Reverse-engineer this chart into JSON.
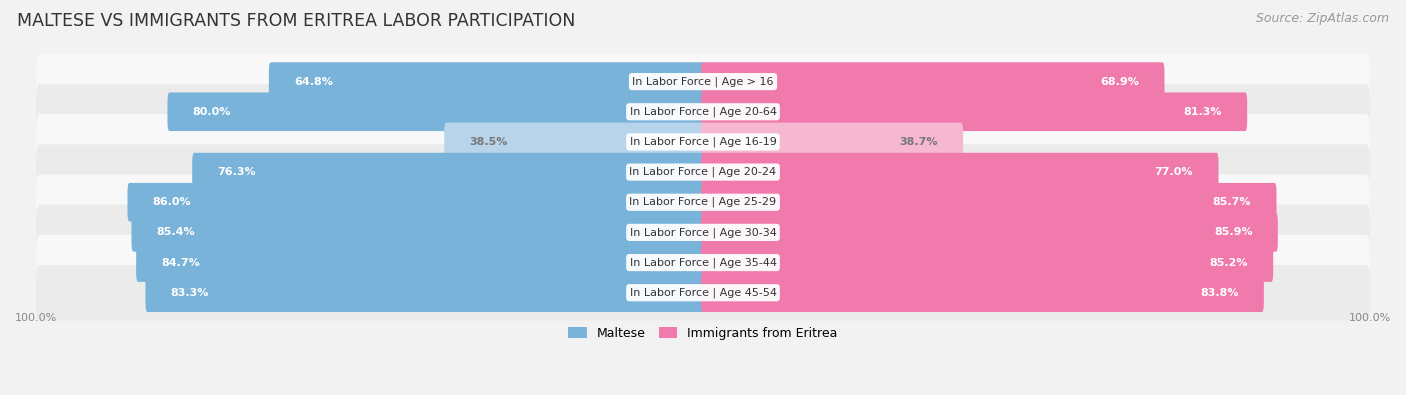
{
  "title": "MALTESE VS IMMIGRANTS FROM ERITREA LABOR PARTICIPATION",
  "source": "Source: ZipAtlas.com",
  "categories": [
    "In Labor Force | Age > 16",
    "In Labor Force | Age 20-64",
    "In Labor Force | Age 16-19",
    "In Labor Force | Age 20-24",
    "In Labor Force | Age 25-29",
    "In Labor Force | Age 30-34",
    "In Labor Force | Age 35-44",
    "In Labor Force | Age 45-54"
  ],
  "maltese_values": [
    64.8,
    80.0,
    38.5,
    76.3,
    86.0,
    85.4,
    84.7,
    83.3
  ],
  "eritrea_values": [
    68.9,
    81.3,
    38.7,
    77.0,
    85.7,
    85.9,
    85.2,
    83.8
  ],
  "maltese_color": "#7ab3d9",
  "maltese_light_color": "#b8d4eb",
  "eritrea_color": "#f07aab",
  "eritrea_light_color": "#f5b8d0",
  "bg_color": "#f2f2f2",
  "row_bg_light": "#f8f8f8",
  "row_bg_dark": "#ebebeb",
  "bar_height": 0.68,
  "max_value": 100.0,
  "legend_labels": [
    "Maltese",
    "Immigrants from Eritrea"
  ],
  "title_fontsize": 12.5,
  "source_fontsize": 9,
  "label_fontsize": 8,
  "value_fontsize": 8,
  "axis_label_fontsize": 8
}
